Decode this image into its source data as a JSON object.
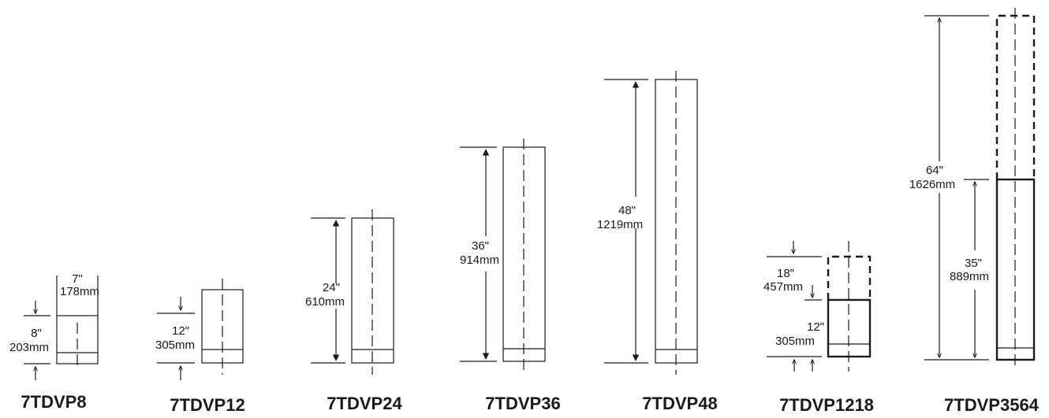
{
  "products": [
    {
      "name": "7TDVP8",
      "height_in": "8\"",
      "height_mm": "203mm",
      "width_in": "7\"",
      "width_mm": "178mm"
    },
    {
      "name": "7TDVP12",
      "height_in": "12\"",
      "height_mm": "305mm"
    },
    {
      "name": "7TDVP24",
      "height_in": "24\"",
      "height_mm": "610mm"
    },
    {
      "name": "7TDVP36",
      "height_in": "36\"",
      "height_mm": "914mm"
    },
    {
      "name": "7TDVP48",
      "height_in": "48\"",
      "height_mm": "1219mm"
    },
    {
      "name": "7TDVP1218",
      "min_in": "12\"",
      "min_mm": "305mm",
      "max_in": "18\"",
      "max_mm": "457mm"
    },
    {
      "name": "7TDVP3564",
      "min_in": "35\"",
      "min_mm": "889mm",
      "max_in": "64\"",
      "max_mm": "1626mm"
    }
  ]
}
